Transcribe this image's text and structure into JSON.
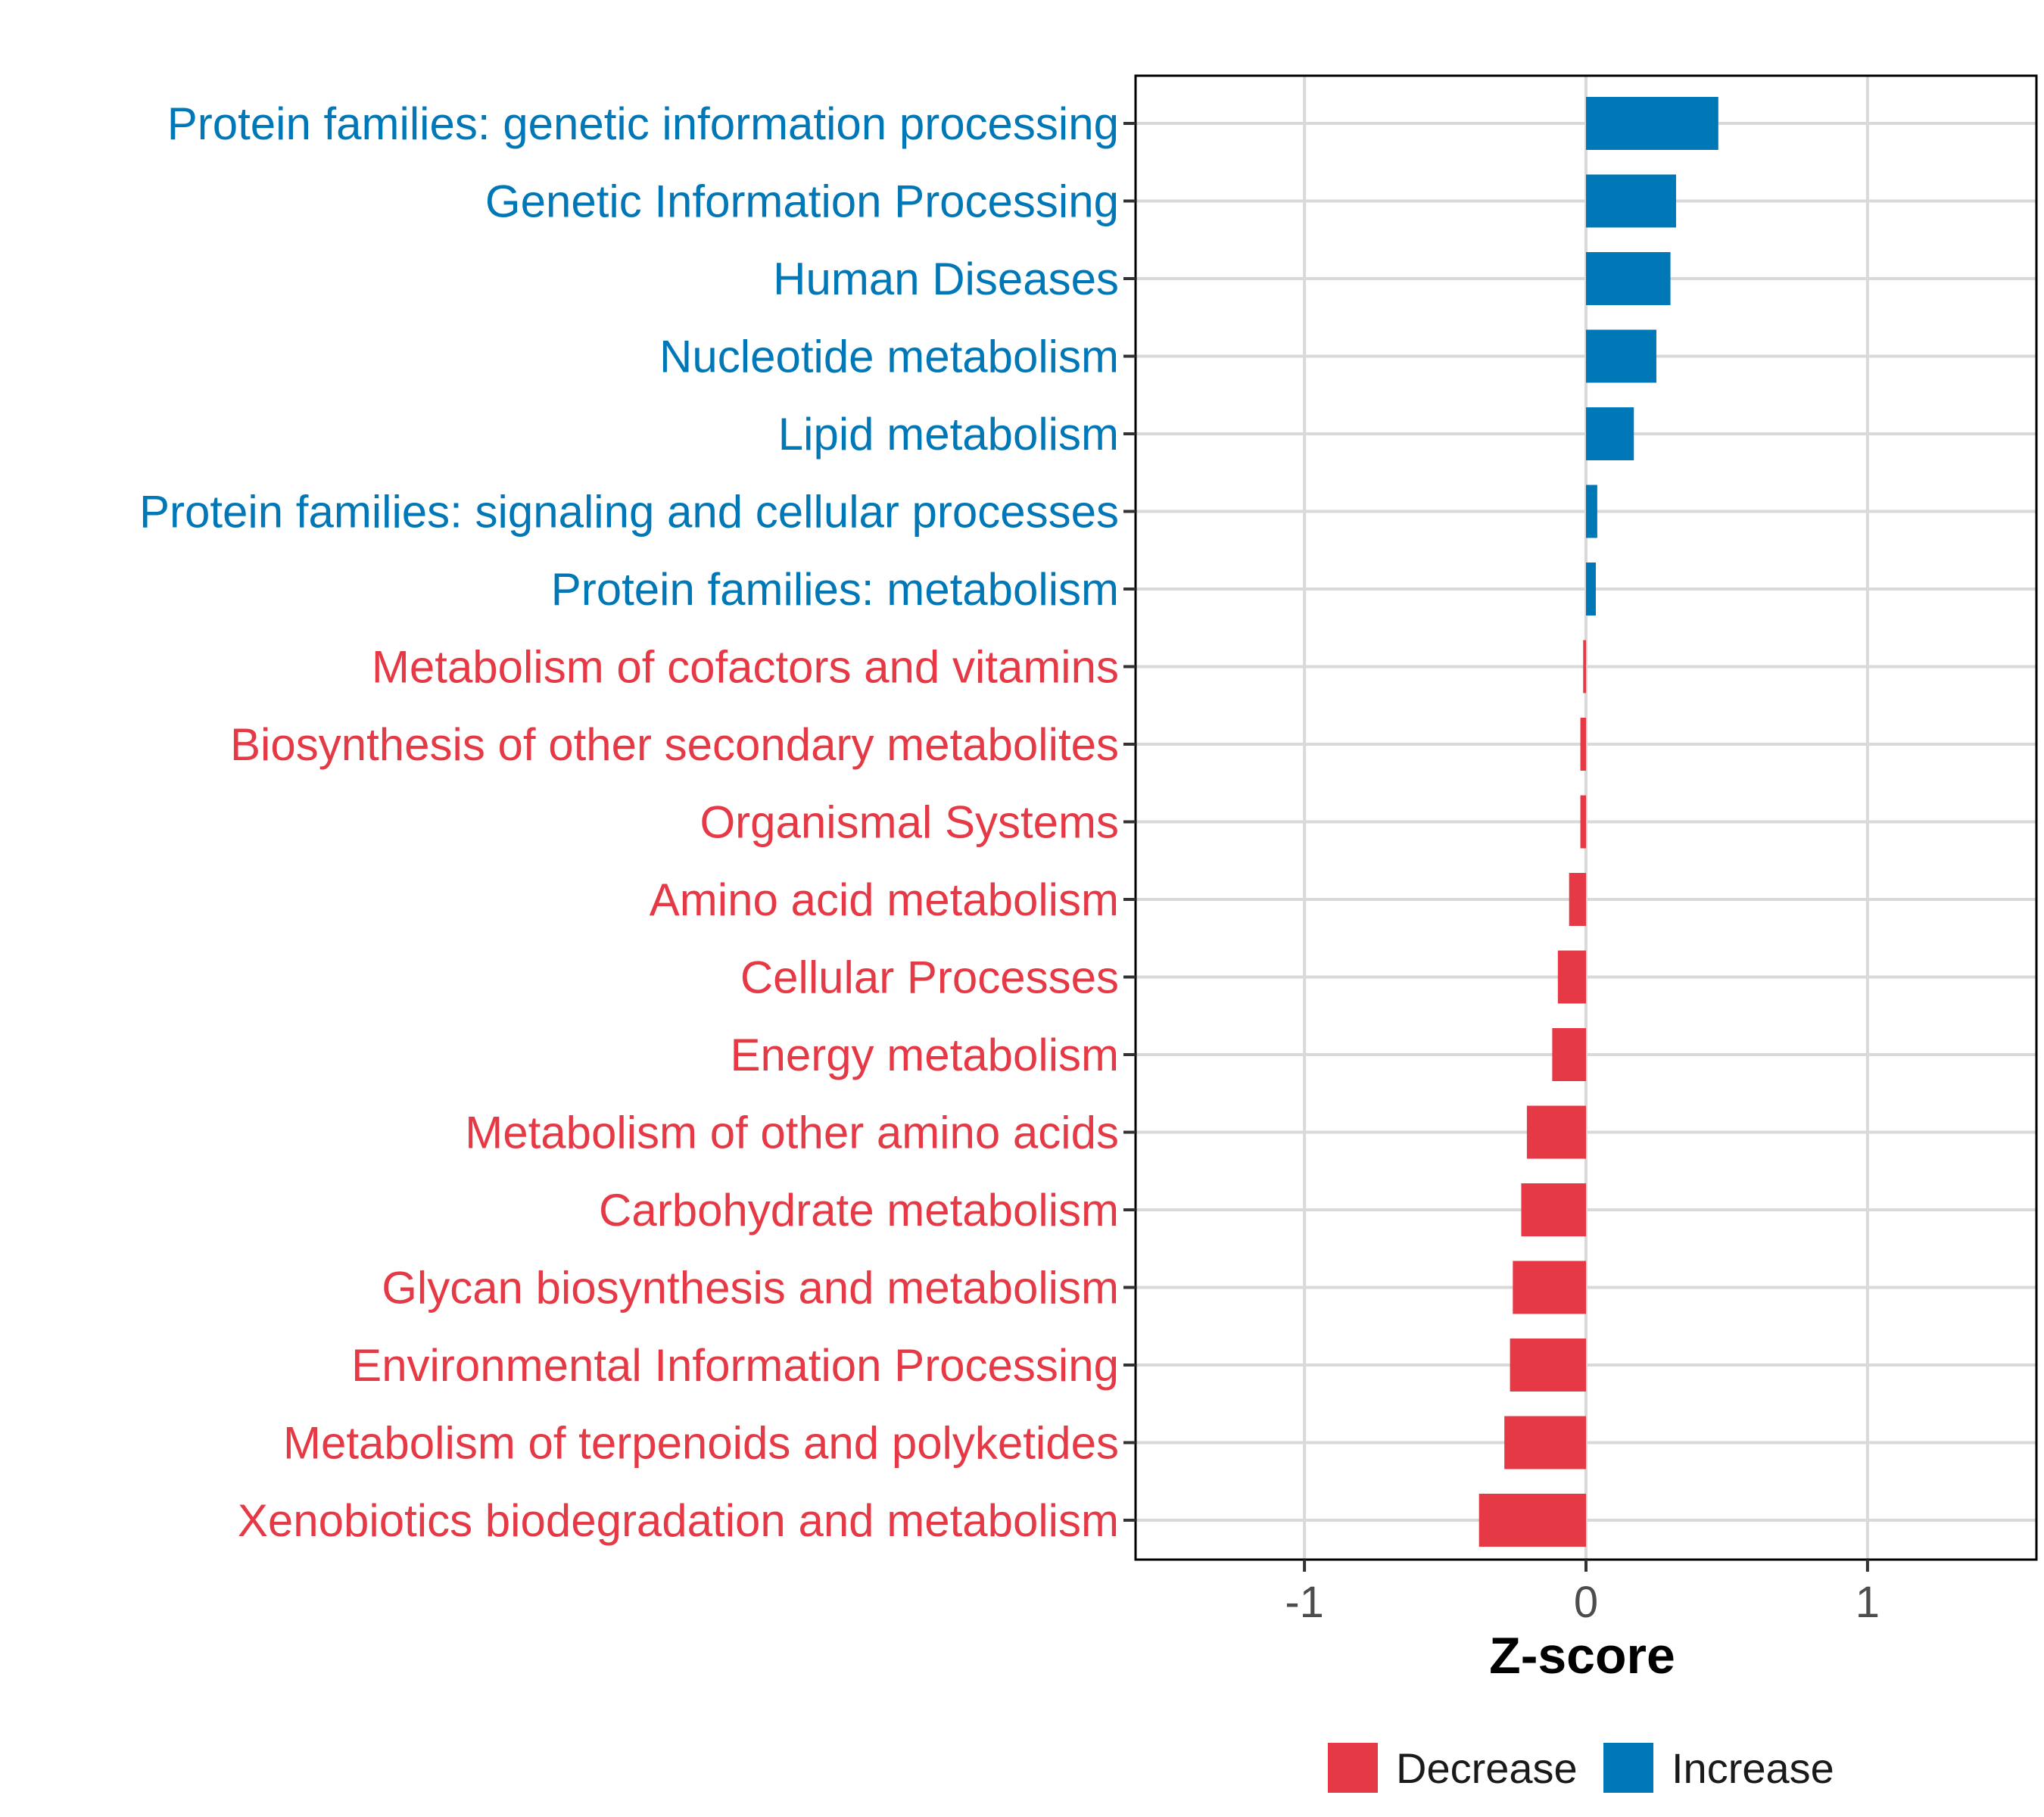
{
  "chart_data": {
    "type": "bar",
    "orientation": "horizontal",
    "title": "",
    "xlabel": "Z-score",
    "ylabel": "",
    "xlim": [
      -1.6,
      1.6
    ],
    "xticks": [
      -1,
      0,
      1
    ],
    "xtick_labels": [
      "-1",
      "0",
      "1"
    ],
    "grid": true,
    "legend_position": "bottom",
    "categories": [
      "Protein families: genetic information processing",
      "Genetic Information Processing",
      "Human Diseases",
      "Nucleotide metabolism",
      "Lipid metabolism",
      "Protein families: signaling and cellular processes",
      "Protein families: metabolism",
      "Metabolism of cofactors and vitamins",
      "Biosynthesis of other secondary metabolites",
      "Organismal Systems",
      "Amino acid metabolism",
      "Cellular Processes",
      "Energy metabolism",
      "Metabolism of other amino acids",
      "Carbohydrate metabolism",
      "Glycan biosynthesis and metabolism",
      "Environmental Information Processing",
      "Metabolism of terpenoids and polyketides",
      "Xenobiotics biodegradation and metabolism"
    ],
    "values": [
      0.47,
      0.32,
      0.3,
      0.25,
      0.17,
      0.04,
      0.035,
      -0.01,
      -0.02,
      -0.02,
      -0.06,
      -0.1,
      -0.12,
      -0.21,
      -0.23,
      -0.26,
      -0.27,
      -0.29,
      -0.38
    ],
    "groups": [
      "Increase",
      "Increase",
      "Increase",
      "Increase",
      "Increase",
      "Increase",
      "Increase",
      "Decrease",
      "Decrease",
      "Decrease",
      "Decrease",
      "Decrease",
      "Decrease",
      "Decrease",
      "Decrease",
      "Decrease",
      "Decrease",
      "Decrease",
      "Decrease"
    ],
    "legend": [
      {
        "name": "Decrease",
        "color": "#E63946"
      },
      {
        "name": "Increase",
        "color": "#0077B6"
      }
    ]
  },
  "colors": {
    "Decrease": "#E63946",
    "Increase": "#0077B6",
    "grid": "#d9d9d9",
    "panel_border": "#000000"
  }
}
